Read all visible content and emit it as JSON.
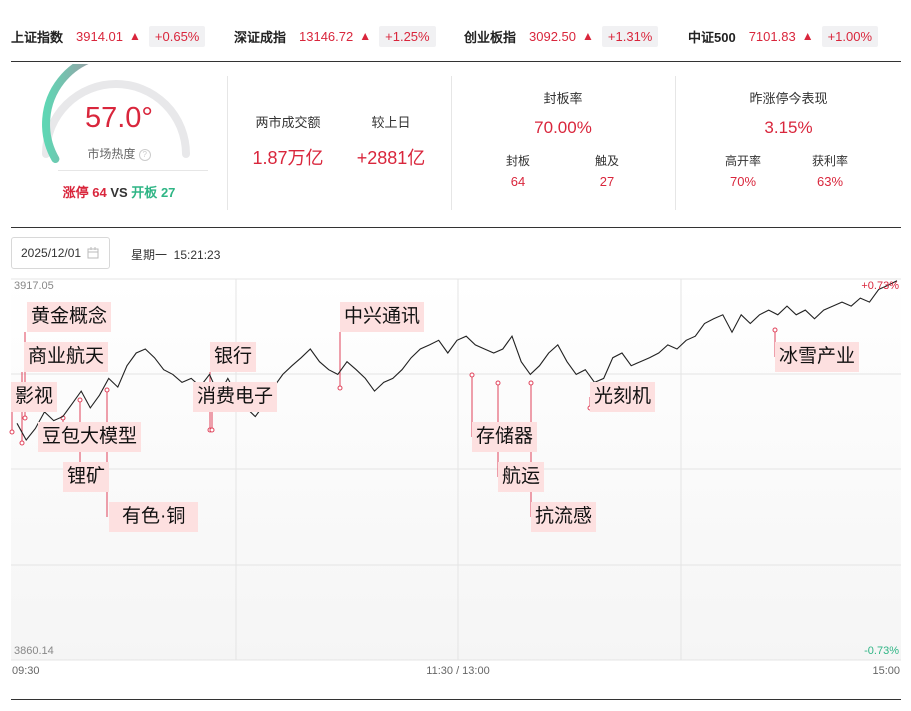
{
  "indices": [
    {
      "name": "上证指数",
      "value": "3914.01",
      "arrow": "▲",
      "change": "+0.65%"
    },
    {
      "name": "深证成指",
      "value": "13146.72",
      "arrow": "▲",
      "change": "+1.25%"
    },
    {
      "name": "创业板指",
      "value": "3092.50",
      "arrow": "▲",
      "change": "+1.31%"
    },
    {
      "name": "中证500",
      "value": "7101.83",
      "arrow": "▲",
      "change": "+1.00%"
    }
  ],
  "heat": {
    "value": "57.0°",
    "level": 0.57,
    "label": "市场热度",
    "help_icon": "question-circle-icon",
    "limit_up_label": "涨停",
    "limit_up_count": "64",
    "vs": "VS",
    "broken_label": "开板",
    "broken_count": "27"
  },
  "turnover": {
    "label": "两市成交额",
    "value": "1.87万亿",
    "compare_label": "较上日",
    "compare_value": "+2881亿"
  },
  "seal": {
    "title": "封板率",
    "value": "70.00%",
    "sub1_label": "封板",
    "sub1_value": "64",
    "sub2_label": "触及",
    "sub2_value": "27"
  },
  "yesterday": {
    "title": "昨涨停今表现",
    "value": "3.15%",
    "sub1_label": "高开率",
    "sub1_value": "70%",
    "sub2_label": "获利率",
    "sub2_value": "63%"
  },
  "date_picker": {
    "value": "2025/12/01",
    "icon": "calendar-icon"
  },
  "datetime": "星期一  15:21:23",
  "colors": {
    "up": "#d9263c",
    "down": "#2fb585",
    "tag_bg": "#fde0e0"
  },
  "chart_data": {
    "type": "line",
    "y_top_label": "3917.05",
    "y_bottom_label": "3860.14",
    "pct_top_label": "+0.73%",
    "pct_bottom_label": "-0.73%",
    "x_labels": [
      "09:30",
      "11:30 / 13:00",
      "15:00"
    ],
    "ylim": [
      3860.14,
      3917.05
    ],
    "series": [
      {
        "values": [
          3895.5,
          3893.0,
          3894.7,
          3897.2,
          3895.9,
          3896.5,
          3898.4,
          3900.3,
          3897.8,
          3899.7,
          3902.2,
          3900.9,
          3904.1,
          3906.0,
          3906.6,
          3905.3,
          3903.5,
          3902.8,
          3901.6,
          3902.2,
          3901.0,
          3902.8,
          3899.7,
          3902.2,
          3899.7,
          3897.8,
          3896.5,
          3898.4,
          3900.9,
          3902.8,
          3904.1,
          3905.3,
          3906.6,
          3904.7,
          3903.5,
          3902.8,
          3904.7,
          3903.5,
          3902.2,
          3900.3,
          3901.6,
          3902.2,
          3903.5,
          3905.3,
          3906.6,
          3907.2,
          3907.9,
          3906.0,
          3907.9,
          3908.5,
          3907.2,
          3906.6,
          3906.0,
          3906.6,
          3908.5,
          3904.7,
          3902.8,
          3904.1,
          3906.0,
          3907.2,
          3904.7,
          3902.8,
          3903.5,
          3901.6,
          3902.2,
          3905.3,
          3906.0,
          3904.1,
          3904.7,
          3905.3,
          3906.0,
          3907.2,
          3906.6,
          3907.9,
          3908.5,
          3910.4,
          3911.1,
          3911.7,
          3909.1,
          3911.7,
          3910.4,
          3911.7,
          3912.4,
          3911.7,
          3913.0,
          3911.7,
          3912.4,
          3911.1,
          3912.4,
          3913.0,
          3913.6,
          3913.0,
          3914.2,
          3913.6,
          3915.5,
          3916.1,
          3916.8
        ]
      },
      {
        "name": "",
        "note": "annotation events"
      }
    ],
    "annotations": [
      {
        "label": "影视"
      },
      {
        "label": "黄金概念"
      },
      {
        "label": "商业航天"
      },
      {
        "label": "豆包大模型"
      },
      {
        "label": "锂矿"
      },
      {
        "label": "有色·铜"
      },
      {
        "label": "银行"
      },
      {
        "label": "消费电子"
      },
      {
        "label": "中兴通讯"
      },
      {
        "label": "存储器"
      },
      {
        "label": "航运"
      },
      {
        "label": "抗流感"
      },
      {
        "label": "光刻机"
      },
      {
        "label": "冰雪产业"
      }
    ]
  }
}
